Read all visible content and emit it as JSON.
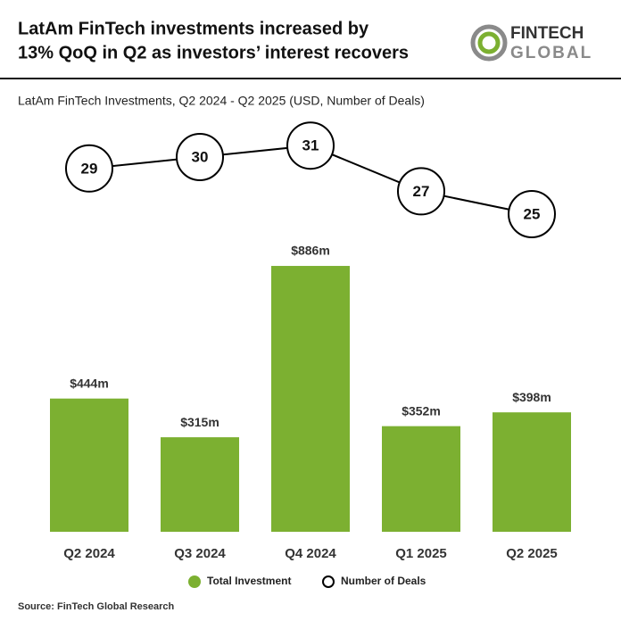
{
  "chart_data": {
    "type": "bar",
    "title": [
      "LatAm FinTech investments increased by",
      "13% QoQ in Q2 as investors’ interest recovers"
    ],
    "subtitle": "LatAm FinTech Investments, Q2 2024 - Q2 2025 (USD, Number of Deals)",
    "categories": [
      "Q2 2024",
      "Q3 2024",
      "Q4 2024",
      "Q1 2025",
      "Q2 2025"
    ],
    "series": [
      {
        "name": "Total Investment",
        "type": "bar",
        "color": "#7cb031",
        "values": [
          444,
          315,
          886,
          352,
          398
        ],
        "value_labels": [
          "$444m",
          "$315m",
          "$886m",
          "$352m",
          "$398m"
        ]
      },
      {
        "name": "Number of Deals",
        "type": "line",
        "color": "#000000",
        "values": [
          29,
          30,
          31,
          27,
          25
        ]
      }
    ],
    "source": "Source: FinTech Global Research"
  },
  "logo": {
    "line1": "FINTECH",
    "line2": "GLOBAL"
  }
}
